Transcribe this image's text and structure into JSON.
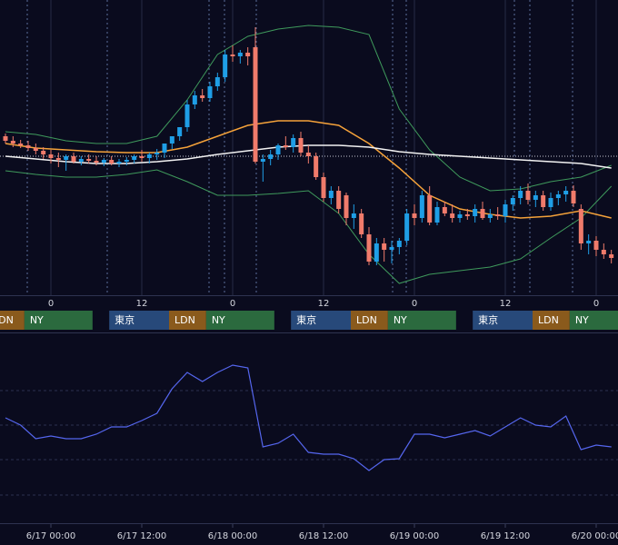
{
  "chart_data": [
    {
      "type": "candlestick",
      "x": [
        -6,
        -5,
        -4,
        -3,
        -2,
        -1,
        0,
        1,
        2,
        3,
        4,
        5,
        6,
        7,
        8,
        9,
        10,
        11,
        12,
        13,
        14,
        15,
        16,
        17,
        18,
        19,
        20,
        21,
        22,
        23,
        24,
        25,
        26,
        27,
        28,
        29,
        30,
        31,
        32,
        33,
        34,
        35,
        36,
        37,
        38,
        39,
        40,
        41,
        42,
        43,
        44,
        45,
        46,
        47,
        48,
        49,
        50,
        51,
        52,
        53,
        54,
        55,
        56,
        57,
        58,
        59,
        60,
        61,
        62,
        63,
        64,
        65,
        66,
        67,
        68,
        69,
        70,
        71,
        72,
        73,
        74
      ],
      "open": [
        175,
        170,
        167,
        165,
        162,
        159,
        155,
        151,
        149,
        153,
        147,
        150,
        148,
        146,
        149,
        145,
        147,
        149,
        153,
        151,
        155,
        157,
        167,
        175,
        185,
        210,
        220,
        217,
        230,
        240,
        265,
        263,
        267,
        273,
        147,
        150,
        155,
        165,
        163,
        173,
        157,
        153,
        130,
        107,
        115,
        110,
        85,
        90,
        67,
        37,
        57,
        50,
        53,
        60,
        90,
        85,
        110,
        80,
        97,
        90,
        85,
        89,
        87,
        95,
        85,
        89,
        87,
        100,
        107,
        115,
        105,
        110,
        97,
        107,
        111,
        115,
        95,
        57,
        60,
        50,
        45
      ],
      "high": [
        178,
        175,
        171,
        170,
        167,
        163,
        160,
        157,
        155,
        157,
        153,
        155,
        153,
        151,
        153,
        150,
        152,
        155,
        160,
        157,
        161,
        165,
        175,
        185,
        215,
        225,
        227,
        235,
        245,
        270,
        275,
        270,
        273,
        295,
        155,
        160,
        167,
        175,
        177,
        180,
        165,
        157,
        135,
        120,
        120,
        113,
        100,
        95,
        75,
        63,
        63,
        60,
        63,
        95,
        100,
        115,
        120,
        103,
        103,
        100,
        93,
        95,
        100,
        103,
        95,
        97,
        105,
        110,
        120,
        123,
        115,
        115,
        113,
        115,
        120,
        121,
        100,
        67,
        65,
        57,
        50
      ],
      "low": [
        167,
        163,
        162,
        159,
        155,
        150,
        145,
        141,
        137,
        145,
        143,
        145,
        143,
        142,
        143,
        141,
        143,
        145,
        147,
        145,
        149,
        151,
        161,
        170,
        180,
        205,
        213,
        213,
        225,
        235,
        257,
        255,
        253,
        145,
        125,
        143,
        149,
        160,
        157,
        153,
        145,
        127,
        103,
        100,
        90,
        77,
        73,
        63,
        33,
        33,
        37,
        35,
        45,
        55,
        77,
        80,
        77,
        77,
        87,
        80,
        80,
        83,
        80,
        83,
        80,
        83,
        80,
        93,
        100,
        100,
        97,
        93,
        93,
        99,
        103,
        97,
        50,
        45,
        43,
        40,
        35
      ],
      "close": [
        170,
        167,
        165,
        162,
        159,
        155,
        151,
        149,
        153,
        147,
        150,
        148,
        146,
        149,
        145,
        147,
        149,
        153,
        151,
        155,
        157,
        167,
        175,
        185,
        210,
        220,
        217,
        230,
        240,
        265,
        263,
        267,
        263,
        147,
        150,
        155,
        165,
        163,
        173,
        157,
        153,
        130,
        107,
        115,
        95,
        85,
        90,
        67,
        37,
        57,
        50,
        53,
        60,
        90,
        85,
        110,
        80,
        97,
        90,
        85,
        89,
        87,
        95,
        85,
        89,
        87,
        100,
        107,
        115,
        105,
        110,
        97,
        107,
        111,
        115,
        101,
        57,
        60,
        50,
        45,
        41
      ],
      "up_color": "#1f9ee6",
      "down_color": "#f07b6b",
      "xlim": [
        -6.72,
        74.88
      ],
      "ylim": [
        0,
        325
      ],
      "xticks": [
        0,
        12,
        {
          "value": 24,
          "label": "0"
        },
        {
          "value": 36,
          "label": "12"
        },
        {
          "value": 48,
          "label": "0"
        },
        {
          "value": 60,
          "label": "12"
        },
        {
          "value": 72,
          "label": "0"
        }
      ],
      "last_price": 153,
      "last_price_color": "#c8cad4",
      "overlay_x": [
        -6,
        -2,
        2,
        6,
        10,
        14,
        18,
        22,
        26,
        30,
        34,
        38,
        42,
        46,
        50,
        54,
        58,
        62,
        66,
        70,
        74
      ],
      "overlays": [
        {
          "color": "#3f9a5c",
          "values": [
            180,
            177,
            170,
            167,
            167,
            175,
            215,
            265,
            285,
            293,
            297,
            295,
            287,
            205,
            160,
            130,
            115,
            117,
            125,
            130,
            143
          ]
        },
        {
          "color": "#3f9a5c",
          "values": [
            137,
            133,
            130,
            130,
            133,
            138,
            125,
            110,
            110,
            112,
            115,
            90,
            45,
            13,
            23,
            27,
            31,
            40,
            63,
            85,
            120
          ]
        },
        {
          "color": "#f5a23a",
          "values": [
            167,
            162,
            160,
            158,
            157,
            157,
            163,
            175,
            187,
            192,
            192,
            187,
            167,
            140,
            110,
            95,
            89,
            85,
            87,
            93,
            85
          ]
        },
        {
          "color": "#f2f2f2",
          "values": [
            153,
            150,
            147,
            145,
            145,
            147,
            150,
            155,
            159,
            163,
            165,
            165,
            163,
            158,
            155,
            153,
            151,
            149,
            147,
            145,
            140
          ]
        }
      ],
      "sessions": [
        {
          "name": "東京",
          "color": "#27497a"
        },
        {
          "name": "LDN",
          "color": "#8a5a1c"
        },
        {
          "name": "NY",
          "color": "#2b6a3e"
        }
      ]
    },
    {
      "type": "line",
      "x": [
        -6,
        -4,
        -2,
        0,
        2,
        4,
        6,
        8,
        10,
        12,
        14,
        16,
        18,
        20,
        22,
        24,
        26,
        28,
        30,
        32,
        34,
        36,
        38,
        40,
        42,
        44,
        46,
        48,
        50,
        52,
        54,
        56,
        58,
        60,
        62,
        64,
        66,
        68,
        70,
        72,
        74
      ],
      "values": [
        115,
        107,
        92,
        95,
        92,
        92,
        97,
        105,
        105,
        112,
        120,
        147,
        165,
        155,
        165,
        173,
        170,
        83,
        87,
        97,
        77,
        75,
        75,
        70,
        57,
        69,
        70,
        97,
        97,
        93,
        97,
        101,
        95,
        105,
        115,
        107,
        105,
        117,
        80,
        85,
        83
      ],
      "color": "#5566ee",
      "xlim": [
        -6.72,
        74.88
      ],
      "ylim": [
        0,
        207
      ],
      "hlines": [
        145,
        107,
        69,
        30
      ],
      "xticks": [
        {
          "value": 0,
          "label": "6/17 00:00"
        },
        {
          "value": 12,
          "label": "6/17 12:00"
        },
        {
          "value": 24,
          "label": "6/18 00:00"
        },
        {
          "value": 36,
          "label": "6/18 12:00"
        },
        {
          "value": 48,
          "label": "6/19 00:00"
        },
        {
          "value": 60,
          "label": "6/19 12:00"
        },
        {
          "value": 72,
          "label": "6/20 00:00"
        }
      ]
    }
  ]
}
